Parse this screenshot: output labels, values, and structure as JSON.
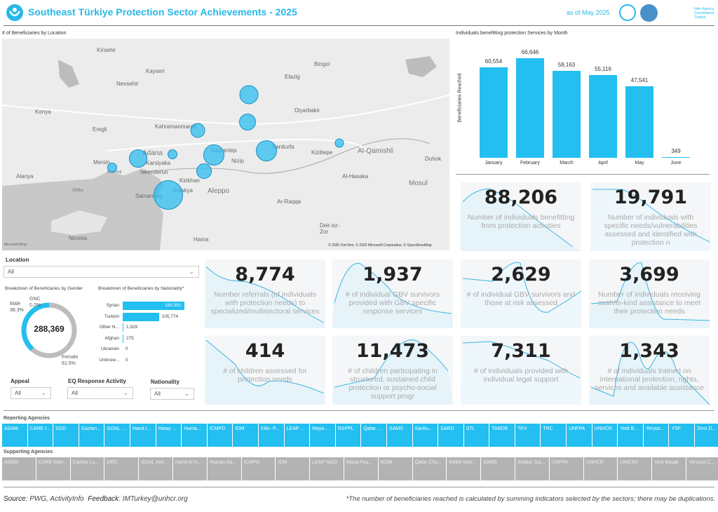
{
  "header": {
    "title": "Southeast Türkiye Protection Sector Achievements - 2025",
    "as_of": "as of May 2025",
    "coord_logo_text": "Inter-Agency Coordination Türkiye"
  },
  "map": {
    "title": "# of Beneficiaries by Location",
    "attribution": "© 2025 TomTom, © 2025 Microsoft Corporation, © OpenStreetMap",
    "brand": "Microsoft Bing",
    "labels": [
      "Kirsehir",
      "Kayseri",
      "Nevsehir",
      "Konya",
      "Eregli",
      "Adana",
      "Karsiyaka",
      "Mersin",
      "Iskenderun",
      "Kahramanmaras",
      "Gaziantep",
      "Nizip",
      "Kirikhan",
      "Samandag",
      "Antakya",
      "Aleppo",
      "Alanya",
      "Nicosia",
      "Hama",
      "Elazig",
      "Bingol",
      "Diyarbakir",
      "Sanliurfa",
      "Kiziltepe",
      "Al-Qamishli",
      "Duhok",
      "Al-Hasaka",
      "Mosul",
      "Ar-Raqqa",
      "Deir ez-Zor",
      "Erdemli",
      "Silifke"
    ]
  },
  "bar_chart": {
    "title": "Individuals benefitting protection Services by Month",
    "ylabel": "Beneficiaries Reached",
    "chart_data": {
      "type": "bar",
      "categories": [
        "January",
        "February",
        "March",
        "April",
        "May",
        "June"
      ],
      "values": [
        60554,
        66646,
        58163,
        55116,
        47541,
        349
      ],
      "labels": [
        "60,554",
        "66,646",
        "58,163",
        "55,116",
        "47,541",
        "349"
      ],
      "title": "Individuals benefitting protection Services by Month",
      "ylabel": "Beneficiaries Reached",
      "ylim": [
        0,
        70000
      ]
    }
  },
  "location_filter": {
    "label": "Location",
    "value": "All"
  },
  "gender": {
    "title": "Breakdown of Beneficiaries by Gender",
    "total": "288,369",
    "segments": [
      {
        "name": "Male",
        "pct": "38.3%",
        "value": 38.3
      },
      {
        "name": "GNC",
        "pct": "0.2%",
        "value": 0.2
      },
      {
        "name": "Female",
        "pct": "61.5%",
        "value": 61.5
      }
    ]
  },
  "nationality": {
    "title": "Breakdown of Beneficiaries by Nationality*",
    "rows": [
      {
        "name": "Syrian",
        "label": "180,391",
        "value": 180391
      },
      {
        "name": "Turkish",
        "label": "105,774",
        "value": 105774
      },
      {
        "name": "Other N...",
        "label": "1,929",
        "value": 1929
      },
      {
        "name": "Afghan",
        "label": "275",
        "value": 275
      },
      {
        "name": "Ukranian",
        "label": "0",
        "value": 0
      },
      {
        "name": "Unknow...",
        "label": "0",
        "value": 0
      }
    ]
  },
  "filters": [
    {
      "label": "Appeal",
      "value": "All"
    },
    {
      "label": "EQ Response Activity",
      "value": "All"
    },
    {
      "label": "Nationality",
      "value": "All"
    }
  ],
  "kpis": [
    {
      "value": "88,206",
      "desc": "Number of individuals benefitting from protection activities"
    },
    {
      "value": "19,791",
      "desc": "Number of individuals with specific needs/vulnerabilities assessed and identified with protection n"
    },
    {
      "value": "8,774",
      "desc": "Number referrals (of individuals with protection needs) to specialized/multisectoral services"
    },
    {
      "value": "1,937",
      "desc": "# of individual GBV survivors provided with GBV specific response services"
    },
    {
      "value": "2,629",
      "desc": "# of individual GBV survivors and those at risk assessed"
    },
    {
      "value": "3,699",
      "desc": "Number of individuals receiving cash/in-kind assistance to meet their protection needs"
    },
    {
      "value": "414",
      "desc": "# of children assessed for protection needs"
    },
    {
      "value": "11,473",
      "desc": "# of children participating in structured, sustained child protection or psycho-social support progr"
    },
    {
      "value": "7,311",
      "desc": "# of individuals provided with individual legal support"
    },
    {
      "value": "1,343",
      "desc": "# of individuals trained on international protection, rights, services and available assistance"
    }
  ],
  "reporting": {
    "label": "Reporting Agencies",
    "items": [
      "ASAM",
      "CARE I...",
      "DDD",
      "Gazian...",
      "GOAL ...",
      "Hand I...",
      "Hatay ...",
      "Huma...",
      "ICMPD",
      "IOM",
      "Kilis- P...",
      "LEAP ...",
      "Maya ...",
      "NSPPL",
      "Qatar ...",
      "SAMS",
      "Sanliu...",
      "SARD",
      "STL",
      "TARDE",
      "TKV",
      "TRC",
      "UNFPA",
      "UNHCR",
      "Yedi B...",
      "Yeryüz...",
      "YSF",
      "Zero D..."
    ]
  },
  "supporting": {
    "label": "Supporting Agencies",
    "items": [
      "ASAM",
      "CARE Inter...",
      "Caritas Lu...",
      "DRC",
      "GOAL Inte...",
      "Hand in H...",
      "Human Ap...",
      "ICMPD",
      "IOM",
      "LEAP NGO",
      "Maya Fou...",
      "MDM",
      "Qatar Cha...",
      "Relief Inter...",
      "SAMS",
      "Solidar Sui...",
      "UNFPA",
      "UNHCR",
      "UNICEF",
      "Yedi Basak",
      "Yeryüzü C..."
    ]
  },
  "footer": {
    "source_label": "Source",
    "source": ": PWG, ActivityInfo",
    "feedback_label": "Feedback",
    "feedback": ": IMTurkey@unhcr.org",
    "note": "*The number of beneficiaries reached is calculated by summing indicators selected by the sectors; there may be duplications."
  },
  "colors": {
    "accent": "#22bff0",
    "tile_gray": "#b3b3b3",
    "donut_gray": "#bdbdbd"
  }
}
